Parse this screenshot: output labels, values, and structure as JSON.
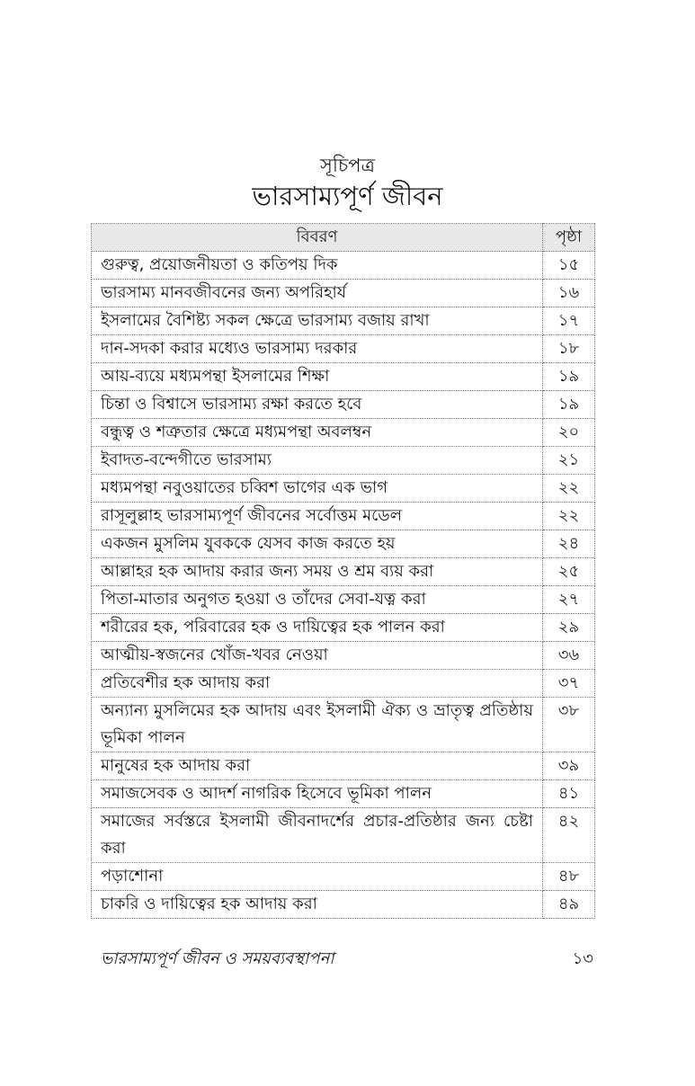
{
  "header": {
    "label": "সূচিপত্র",
    "title": "ভারসাম্যপূর্ণ জীবন"
  },
  "table": {
    "columns": [
      "বিবরণ",
      "পৃষ্ঠা"
    ],
    "rows": [
      {
        "desc": "গুরুত্ব, প্রয়োজনীয়তা ও কতিপয় দিক",
        "page": "১৫"
      },
      {
        "desc": "ভারসাম্য মানবজীবনের জন্য অপরিহার্য",
        "page": "১৬"
      },
      {
        "desc": "ইসলামের বৈশিষ্ট্য সকল ক্ষেত্রে ভারসাম্য বজায় রাখা",
        "page": "১৭"
      },
      {
        "desc": "দান-সদকা করার মধ্যেও ভারসাম্য দরকার",
        "page": "১৮"
      },
      {
        "desc": "আয়-ব্যয়ে মধ্যমপন্থা ইসলামের শিক্ষা",
        "page": "১৯"
      },
      {
        "desc": "চিন্তা ও বিশ্বাসে ভারসাম্য রক্ষা করতে হবে",
        "page": "১৯"
      },
      {
        "desc": "বন্ধুত্ব ও শত্রুতার ক্ষেত্রে মধ্যমপন্থা অবলম্বন",
        "page": "২০"
      },
      {
        "desc": "ইবাদত-বন্দেগীতে ভারসাম্য",
        "page": "২১"
      },
      {
        "desc": "মধ্যমপন্থা নবুওয়াতের চব্বিশ ভাগের এক ভাগ",
        "page": "২২"
      },
      {
        "desc": "রাসূলুল্লাহ ভারসাম্যপূর্ণ জীবনের সর্বোত্তম মডেল",
        "page": "২২"
      },
      {
        "desc": "একজন মুসলিম যুবককে যেসব কাজ করতে হয়",
        "page": "২৪"
      },
      {
        "desc": "আল্লাহর হক আদায় করার জন্য সময় ও শ্রম ব্যয় করা",
        "page": "২৫"
      },
      {
        "desc": "পিতা-মাতার অনুগত হওয়া ও তাঁদের সেবা-যত্ন করা",
        "page": "২৭"
      },
      {
        "desc": "শরীরের হক, পরিবারের হক ও দায়িত্বের হক পালন করা",
        "page": "২৯"
      },
      {
        "desc": "আত্মীয়-স্বজনের খোঁজ-খবর নেওয়া",
        "page": "৩৬"
      },
      {
        "desc": "প্রতিবেশীর হক আদায় করা",
        "page": "৩৭"
      },
      {
        "desc": "অন্যান্য মুসলিমের হক আদায় এবং ইসলামী ঐক্য ও ভ্রাতৃত্ব প্রতিষ্ঠায় ভূমিকা পালন",
        "page": "৩৮"
      },
      {
        "desc": "মানুষের হক আদায় করা",
        "page": "৩৯"
      },
      {
        "desc": "সমাজসেবক ও আদর্শ নাগরিক হিসেবে ভূমিকা পালন",
        "page": "৪১"
      },
      {
        "desc": "সমাজের সর্বস্তরে ইসলামী জীবনাদর্শের প্রচার-প্রতিষ্ঠার জন্য চেষ্টা করা",
        "page": "৪২"
      },
      {
        "desc": "পড়াশোনা",
        "page": "৪৮"
      },
      {
        "desc": "চাকরি ও দায়িত্বের হক আদায় করা",
        "page": "৪৯"
      }
    ]
  },
  "footer": {
    "book_title": "ভারসাম্যপূর্ণ জীবন ও সময়ব্যবস্থাপনা",
    "page_number": "১৩"
  }
}
